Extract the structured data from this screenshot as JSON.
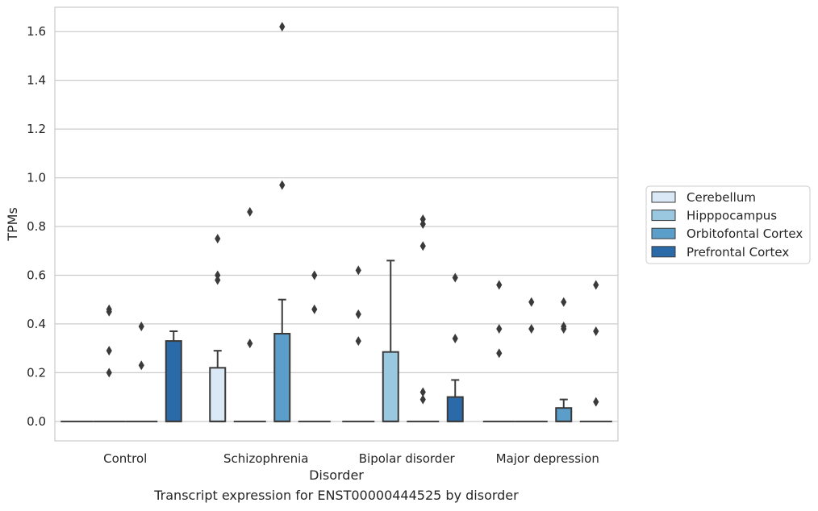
{
  "caption": "Transcript expression for ENST00000444525 by disorder",
  "chart_data": {
    "type": "box",
    "xlabel": "Disorder",
    "ylabel": "TPMs",
    "ylim": [
      -0.08,
      1.7
    ],
    "yticks": [
      0.0,
      0.2,
      0.4,
      0.6,
      0.8,
      1.0,
      1.2,
      1.4,
      1.6
    ],
    "ytick_labels": [
      "0.0",
      "0.2",
      "0.4",
      "0.6",
      "0.8",
      "1.0",
      "1.2",
      "1.4",
      "1.6"
    ],
    "grid": true,
    "legend_position": "right",
    "categories": [
      "Control",
      "Schizophrenia",
      "Bipolar disorder",
      "Major depression"
    ],
    "series": [
      {
        "name": "Cerebellum",
        "color": "#dbe9f6",
        "boxes": [
          {
            "q1": 0,
            "median": 0,
            "q3": 0,
            "whislo": 0,
            "whishi": 0,
            "fliers": []
          },
          {
            "q1": 0,
            "median": 0,
            "q3": 0.22,
            "whislo": 0,
            "whishi": 0.29,
            "fliers": [
              0.75,
              0.6,
              0.58
            ]
          },
          {
            "q1": 0,
            "median": 0,
            "q3": 0,
            "whislo": 0,
            "whishi": 0,
            "fliers": [
              0.62,
              0.44,
              0.33
            ]
          },
          {
            "q1": 0,
            "median": 0,
            "q3": 0,
            "whislo": 0,
            "whishi": 0,
            "fliers": [
              0.56,
              0.38,
              0.28
            ]
          }
        ]
      },
      {
        "name": "Hipppocampus",
        "color": "#9ac8e0",
        "boxes": [
          {
            "q1": 0,
            "median": 0,
            "q3": 0,
            "whislo": 0,
            "whishi": 0,
            "fliers": [
              0.46,
              0.45,
              0.29,
              0.2
            ]
          },
          {
            "q1": 0,
            "median": 0,
            "q3": 0,
            "whislo": 0,
            "whishi": 0,
            "fliers": [
              0.86,
              0.32
            ]
          },
          {
            "q1": 0,
            "median": 0,
            "q3": 0.285,
            "whislo": 0,
            "whishi": 0.66,
            "fliers": []
          },
          {
            "q1": 0,
            "median": 0,
            "q3": 0,
            "whislo": 0,
            "whishi": 0,
            "fliers": [
              0.49,
              0.38
            ]
          }
        ]
      },
      {
        "name": "Orbitofontal Cortex",
        "color": "#5a9ec9",
        "boxes": [
          {
            "q1": 0,
            "median": 0,
            "q3": 0,
            "whislo": 0,
            "whishi": 0,
            "fliers": [
              0.39,
              0.23
            ]
          },
          {
            "q1": 0,
            "median": 0,
            "q3": 0.36,
            "whislo": 0,
            "whishi": 0.5,
            "fliers": [
              1.62,
              0.97
            ]
          },
          {
            "q1": 0,
            "median": 0,
            "q3": 0,
            "whislo": 0,
            "whishi": 0,
            "fliers": [
              0.83,
              0.81,
              0.72,
              0.12,
              0.09
            ]
          },
          {
            "q1": 0,
            "median": 0,
            "q3": 0.055,
            "whislo": 0,
            "whishi": 0.09,
            "fliers": [
              0.49,
              0.39,
              0.38
            ]
          }
        ]
      },
      {
        "name": "Prefrontal Cortex",
        "color": "#2b6aa8",
        "boxes": [
          {
            "q1": 0,
            "median": 0,
            "q3": 0.33,
            "whislo": 0,
            "whishi": 0.37,
            "fliers": []
          },
          {
            "q1": 0,
            "median": 0,
            "q3": 0,
            "whislo": 0,
            "whishi": 0,
            "fliers": [
              0.6,
              0.46
            ]
          },
          {
            "q1": 0,
            "median": 0,
            "q3": 0.1,
            "whislo": 0,
            "whishi": 0.17,
            "fliers": [
              0.59,
              0.34
            ]
          },
          {
            "q1": 0,
            "median": 0,
            "q3": 0,
            "whislo": 0,
            "whishi": 0,
            "fliers": [
              0.56,
              0.37,
              0.08
            ]
          }
        ]
      }
    ]
  }
}
